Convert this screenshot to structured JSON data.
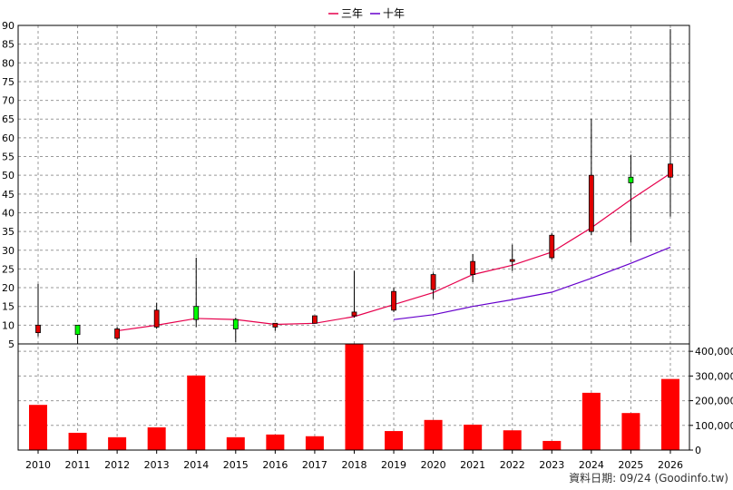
{
  "chart_data": [
    {
      "type": "candlestick",
      "legend": [
        {
          "name": "三年",
          "color": "#e6004c"
        },
        {
          "name": "十年",
          "color": "#6600cc"
        }
      ],
      "years": [
        "2010",
        "2011",
        "2012",
        "2013",
        "2014",
        "2015",
        "2016",
        "2017",
        "2018",
        "2019",
        "2020",
        "2021",
        "2022",
        "2023",
        "2024",
        "2025",
        "2026"
      ],
      "yticks": [
        "5",
        "10",
        "15",
        "20",
        "25",
        "30",
        "35",
        "40",
        "45",
        "50",
        "55",
        "60",
        "65",
        "70",
        "75",
        "80",
        "85",
        "90"
      ],
      "ylim": [
        5,
        90
      ],
      "grid": true,
      "candles": [
        {
          "year": "2010",
          "open": 10,
          "close": 8,
          "high": 21,
          "low": 7
        },
        {
          "year": "2011",
          "open": 7.5,
          "close": 10,
          "high": 10,
          "low": 5
        },
        {
          "year": "2012",
          "open": 9,
          "close": 6.5,
          "high": 9.5,
          "low": 6
        },
        {
          "year": "2013",
          "open": 14,
          "close": 9.5,
          "high": 16,
          "low": 9
        },
        {
          "year": "2014",
          "open": 11.5,
          "close": 15,
          "high": 28,
          "low": 9.5
        },
        {
          "year": "2015",
          "open": 9,
          "close": 11.5,
          "high": 12,
          "low": 5.5
        },
        {
          "year": "2016",
          "open": 10.5,
          "close": 9.5,
          "high": 10.5,
          "low": 8.5
        },
        {
          "year": "2017",
          "open": 12.5,
          "close": 10.5,
          "high": 12.5,
          "low": 10.5
        },
        {
          "year": "2018",
          "open": 13.5,
          "close": 12.5,
          "high": 24.5,
          "low": 12
        },
        {
          "year": "2019",
          "open": 19,
          "close": 14,
          "high": 20,
          "low": 13.5
        },
        {
          "year": "2020",
          "open": 23.5,
          "close": 19.5,
          "high": 24,
          "low": 17
        },
        {
          "year": "2021",
          "open": 27,
          "close": 23.5,
          "high": 29,
          "low": 21.5
        },
        {
          "year": "2022",
          "open": 27.5,
          "close": 27,
          "high": 31.5,
          "low": 24.5
        },
        {
          "year": "2023",
          "open": 34,
          "close": 28,
          "high": 34.5,
          "low": 27.5
        },
        {
          "year": "2024",
          "open": 50,
          "close": 35,
          "high": 65,
          "low": 34
        },
        {
          "year": "2025",
          "open": 48,
          "close": 49.5,
          "high": 55.5,
          "low": 32
        },
        {
          "year": "2026",
          "open": 53,
          "close": 49.5,
          "high": 89,
          "low": 39
        }
      ],
      "series": [
        {
          "name": "三年",
          "color": "#e6004c",
          "x": [
            "2012",
            "2013",
            "2014",
            "2015",
            "2016",
            "2017",
            "2018",
            "2019",
            "2020",
            "2021",
            "2022",
            "2023",
            "2024",
            "2025",
            "2026"
          ],
          "values": [
            8.5,
            10,
            11.8,
            11.5,
            10.2,
            10.5,
            12.3,
            15.5,
            18.7,
            23.5,
            26,
            29.5,
            36,
            43.5,
            50.5
          ]
        },
        {
          "name": "十年",
          "color": "#6600cc",
          "x": [
            "2019",
            "2020",
            "2021",
            "2022",
            "2023",
            "2024",
            "2025",
            "2026"
          ],
          "values": [
            11.5,
            12.8,
            15,
            16.8,
            18.8,
            22.5,
            26.5,
            30.8
          ]
        }
      ]
    },
    {
      "type": "bar",
      "categories": [
        "2010",
        "2011",
        "2012",
        "2013",
        "2014",
        "2015",
        "2016",
        "2017",
        "2018",
        "2019",
        "2020",
        "2021",
        "2022",
        "2023",
        "2024",
        "2025",
        "2026"
      ],
      "values": [
        183000,
        70000,
        52000,
        92000,
        302000,
        52000,
        63000,
        56000,
        430000,
        77000,
        122000,
        103000,
        80000,
        37000,
        232000,
        150000,
        288000
      ],
      "yticks": [
        "0",
        "100,000",
        "200,000",
        "300,000",
        "400,000"
      ],
      "ylim": [
        0,
        430000
      ],
      "color": "#ff0000"
    }
  ],
  "footer": {
    "source": "資料日期: 09/24 (Goodinfo.tw)"
  }
}
